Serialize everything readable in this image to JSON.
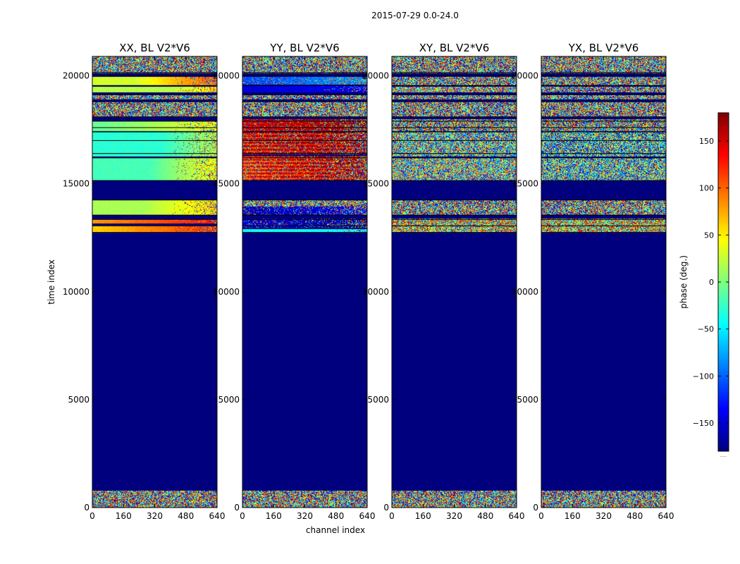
{
  "chart_data": {
    "type": "heatmap",
    "suptitle": "2015-07-29 0.0-24.0",
    "xlabel": "channel index",
    "ylabel": "time index",
    "xlim": [
      0,
      640
    ],
    "ylim": [
      0,
      20900
    ],
    "x_ticks": [
      "0",
      "160",
      "320",
      "480",
      "640"
    ],
    "x_tick_values": [
      0,
      160,
      320,
      480,
      640
    ],
    "y_ticks": [
      "0",
      "5000",
      "10000",
      "15000",
      "20000"
    ],
    "y_tick_values": [
      0,
      5000,
      10000,
      15000,
      20000
    ],
    "colorbar": {
      "label": "phase (deg.)",
      "range": [
        -180,
        180
      ],
      "ticks": [
        "−150",
        "−100",
        "−50",
        "0",
        "50",
        "100",
        "150"
      ],
      "tick_values": [
        -150,
        -100,
        -50,
        0,
        50,
        100,
        150
      ],
      "colormap": [
        "#00007f",
        "#0000ff",
        "#007fff",
        "#00ffff",
        "#7fff7f",
        "#ffff00",
        "#ff7f00",
        "#ff0000",
        "#7f0000"
      ],
      "overflow_label": "......"
    },
    "background_value": -180,
    "panels": [
      {
        "title": "XX, BL V2*V6",
        "bands": [
          {
            "t": [
              0,
              800
            ],
            "kind": "noise"
          },
          {
            "t": [
              12750,
              13050
            ],
            "kind": "smooth",
            "left": 60,
            "right": 120
          },
          {
            "t": [
              13150,
              13350
            ],
            "kind": "smooth",
            "left": 80,
            "right": 130
          },
          {
            "t": [
              13550,
              14250
            ],
            "kind": "smooth",
            "left": 15,
            "right": 60,
            "ramp_from": 0.4
          },
          {
            "t": [
              15150,
              16200
            ],
            "kind": "smooth",
            "left": -20,
            "right": 45,
            "ramp_from": 0.45
          },
          {
            "t": [
              16250,
              17400
            ],
            "kind": "smooth",
            "left": -30,
            "right": 20,
            "ramp_from": 0.55
          },
          {
            "t": [
              17450,
              17900
            ],
            "kind": "smooth",
            "left": -10,
            "right": 40
          },
          {
            "t": [
              18100,
              18800
            ],
            "kind": "noise"
          },
          {
            "t": [
              18900,
              19100
            ],
            "kind": "noise"
          },
          {
            "t": [
              19250,
              19500
            ],
            "kind": "smooth",
            "left": 20,
            "right": 60,
            "ramp_from": 0.6
          },
          {
            "t": [
              19550,
              19950
            ],
            "kind": "smooth",
            "left": 30,
            "right": 110,
            "ramp_from": 0.35
          },
          {
            "t": [
              20100,
              20950
            ],
            "kind": "noise"
          }
        ]
      },
      {
        "title": "YY, BL V2*V6",
        "bands": [
          {
            "t": [
              0,
              800
            ],
            "kind": "noise"
          },
          {
            "t": [
              12750,
              12900
            ],
            "kind": "smooth",
            "left": -40,
            "right": -40
          },
          {
            "t": [
              12950,
              13400
            ],
            "kind": "smooth",
            "left": -150,
            "right": -170,
            "noisy": 0.2
          },
          {
            "t": [
              13550,
              13950
            ],
            "kind": "smooth",
            "left": -160,
            "right": -140,
            "noisy": 0.2
          },
          {
            "t": [
              13950,
              14250
            ],
            "kind": "noise"
          },
          {
            "t": [
              15150,
              16300
            ],
            "kind": "smooth",
            "left": 120,
            "right": 170,
            "stripes": true,
            "noisy": 0.25
          },
          {
            "t": [
              16350,
              17400
            ],
            "kind": "smooth",
            "left": 140,
            "right": 170,
            "stripes": true,
            "noisy": 0.25
          },
          {
            "t": [
              17450,
              18000
            ],
            "kind": "smooth",
            "left": 150,
            "right": 170,
            "noisy": 0.2
          },
          {
            "t": [
              18100,
              18800
            ],
            "kind": "noise"
          },
          {
            "t": [
              18900,
              19100
            ],
            "kind": "noise"
          },
          {
            "t": [
              19250,
              19550
            ],
            "kind": "smooth",
            "left": -150,
            "right": -140
          },
          {
            "t": [
              19600,
              19950
            ],
            "kind": "smooth",
            "left": -110,
            "right": -80,
            "noisy": 0.15
          },
          {
            "t": [
              20100,
              20950
            ],
            "kind": "noise"
          }
        ]
      },
      {
        "title": "XY, BL V2*V6",
        "bands": [
          {
            "t": [
              0,
              800
            ],
            "kind": "noise"
          },
          {
            "t": [
              12750,
              13400
            ],
            "kind": "noise",
            "bias": 40
          },
          {
            "t": [
              13550,
              14250
            ],
            "kind": "noise"
          },
          {
            "t": [
              15150,
              16200
            ],
            "kind": "noise",
            "bias": -10
          },
          {
            "t": [
              16250,
              17400
            ],
            "kind": "noise",
            "bias": -20
          },
          {
            "t": [
              17450,
              18000
            ],
            "kind": "noise"
          },
          {
            "t": [
              18100,
              18800
            ],
            "kind": "noise"
          },
          {
            "t": [
              18900,
              19100
            ],
            "kind": "noise"
          },
          {
            "t": [
              19250,
              19500
            ],
            "kind": "noise",
            "bias": 20
          },
          {
            "t": [
              19550,
              19950
            ],
            "kind": "noise"
          },
          {
            "t": [
              20100,
              20950
            ],
            "kind": "noise"
          }
        ]
      },
      {
        "title": "YX, BL V2*V6",
        "bands": [
          {
            "t": [
              0,
              800
            ],
            "kind": "noise"
          },
          {
            "t": [
              12750,
              13400
            ],
            "kind": "noise",
            "bias": 40
          },
          {
            "t": [
              13550,
              14250
            ],
            "kind": "noise"
          },
          {
            "t": [
              15150,
              16200
            ],
            "kind": "noise",
            "bias": -30
          },
          {
            "t": [
              16250,
              17400
            ],
            "kind": "noise",
            "bias": -40
          },
          {
            "t": [
              17450,
              18000
            ],
            "kind": "noise"
          },
          {
            "t": [
              18100,
              18800
            ],
            "kind": "noise"
          },
          {
            "t": [
              18900,
              19100
            ],
            "kind": "noise"
          },
          {
            "t": [
              19250,
              19500
            ],
            "kind": "noise"
          },
          {
            "t": [
              19550,
              19950
            ],
            "kind": "noise"
          },
          {
            "t": [
              20100,
              20950
            ],
            "kind": "noise"
          }
        ]
      }
    ],
    "separator_lines_t": [
      12750,
      13050,
      13350,
      13550,
      14250,
      15150,
      16200,
      16400,
      17000,
      17400,
      17600,
      17900,
      18100,
      18800,
      19150,
      19550,
      20000,
      20150
    ]
  }
}
